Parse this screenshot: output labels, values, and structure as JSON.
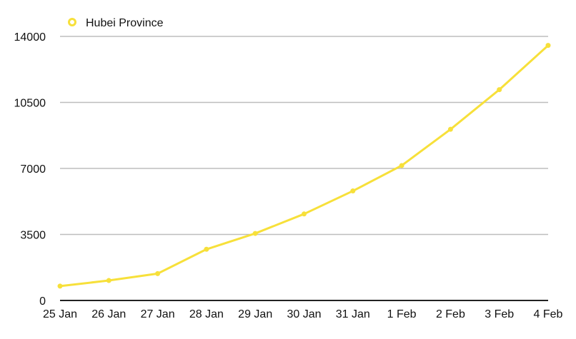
{
  "chart_data": {
    "type": "line",
    "title": "",
    "xlabel": "",
    "ylabel": "",
    "categories": [
      "25 Jan",
      "26 Jan",
      "27 Jan",
      "28 Jan",
      "29 Jan",
      "30 Jan",
      "31 Jan",
      "1 Feb",
      "2 Feb",
      "3 Feb",
      "4 Feb"
    ],
    "series": [
      {
        "name": "Hubei Province",
        "color": "#f7e03a",
        "values": [
          761,
          1058,
          1423,
          2714,
          3554,
          4586,
          5806,
          7153,
          9074,
          11177,
          13522
        ]
      }
    ],
    "ylim": [
      0,
      14000
    ],
    "yticks": [
      0,
      3500,
      7000,
      10500,
      14000
    ],
    "grid": true,
    "legend": "top-left"
  }
}
